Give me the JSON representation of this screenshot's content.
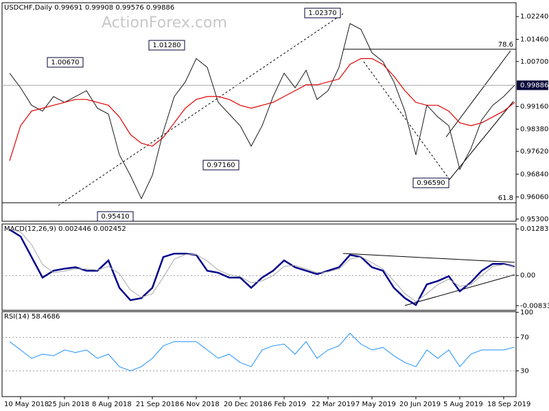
{
  "chart_data": [
    {
      "type": "line",
      "title": "USDCHF,Daily  0.99691 0.99908 0.99576 0.99886",
      "watermark": "ActionForex.com",
      "categories": [
        null,
        "10 May 2018",
        null,
        null,
        null,
        "25 Jun 2018",
        null,
        null,
        null,
        "8 Aug 2018",
        null,
        null,
        null,
        "21 Sep 2018",
        null,
        null,
        null,
        "6 Nov 2018",
        null,
        null,
        null,
        "20 Dec 2018",
        null,
        null,
        null,
        "6 Feb 2019",
        null,
        null,
        null,
        "22 Mar 2019",
        null,
        null,
        null,
        "7 May 2019",
        null,
        null,
        null,
        "20 Jun 2019",
        null,
        null,
        null,
        "5 Aug 2019",
        null,
        null,
        null,
        "18 Sep 2019",
        null
      ],
      "series": [
        {
          "color": "#1a1a1a",
          "values": [
            1.003,
            0.998,
            0.992,
            0.99,
            0.995,
            0.993,
            0.995,
            0.997,
            0.991,
            0.989,
            0.975,
            0.968,
            0.96,
            0.968,
            0.983,
            0.995,
            1.0,
            1.008,
            1.005,
            0.993,
            0.989,
            0.985,
            0.978,
            0.985,
            0.995,
            1.003,
            0.998,
            1.004,
            0.994,
            0.997,
            1.005,
            1.02,
            1.018,
            1.01,
            1.007,
            1.0,
            0.99,
            0.975,
            0.992,
            0.988,
            0.985,
            0.97,
            0.977,
            0.987,
            0.992,
            0.995,
            0.9989
          ]
        },
        {
          "color": "#e00000",
          "values": [
            0.973,
            0.985,
            0.99,
            0.991,
            0.992,
            0.993,
            0.994,
            0.994,
            0.993,
            0.992,
            0.988,
            0.982,
            0.979,
            0.978,
            0.981,
            0.986,
            0.991,
            0.994,
            0.995,
            0.995,
            0.994,
            0.992,
            0.991,
            0.992,
            0.993,
            0.995,
            0.997,
            0.999,
            0.999,
            1.0,
            1.001,
            1.006,
            1.008,
            1.008,
            1.006,
            1.002,
            0.997,
            0.993,
            0.992,
            0.992,
            0.99,
            0.986,
            0.985,
            0.986,
            0.988,
            0.99,
            0.993
          ]
        }
      ],
      "ylim": [
        0.9525,
        1.0269
      ],
      "yticks": [
        {
          "value": 1.0224,
          "label": "1.02240"
        },
        {
          "value": 1.0146,
          "label": "1.01460"
        },
        {
          "value": 1.007,
          "label": "1.00700"
        },
        {
          "value": 0.9916,
          "label": "0.99160"
        },
        {
          "value": 0.9838,
          "label": "0.98380"
        },
        {
          "value": 0.9762,
          "label": "0.97620"
        },
        {
          "value": 0.9684,
          "label": "0.96840"
        },
        {
          "value": 0.9606,
          "label": "0.96060"
        },
        {
          "value": 0.953,
          "label": "0.95300"
        }
      ],
      "last_price": 0.99886,
      "levels": [
        {
          "label": "78.6",
          "value": 1.0112
        },
        {
          "label": "61.8",
          "value": 0.9586
        }
      ],
      "annotations": [
        "1.00670",
        "1.01280",
        "1.02370",
        "0.97160",
        "0.95410",
        "0.96590"
      ]
    },
    {
      "type": "line",
      "title": "MACD(12,26,9) 0.002446 0.002452",
      "series": [
        {
          "color": "#00008b",
          "values": [
            0.01264,
            0.01076,
            0.00509,
            -0.00057,
            0.00132,
            0.00189,
            0.00226,
            0.00132,
            0.00132,
            0.00415,
            -0.0034,
            -0.00679,
            -0.00623,
            -0.0034,
            0.00509,
            0.00604,
            0.00604,
            0.00566,
            0.00132,
            0.00075,
            -0.00057,
            -0.00057,
            -0.0034,
            -0.00057,
            0.00132,
            0.00415,
            0.00226,
            0.00132,
            0.00038,
            0.00132,
            0.00226,
            0.00566,
            0.00509,
            0.00226,
            0.00132,
            -0.0034,
            -0.00623,
            -0.00811,
            -0.00245,
            -0.00151,
            -0.00019,
            -0.00434,
            -0.00189,
            0.00132,
            0.00321,
            0.00321,
            0.002446
          ]
        },
        {
          "color": "#a8a8a8",
          "values": [
            0.0128,
            0.012,
            0.0085,
            0.003,
            0.0008,
            0.0012,
            0.0018,
            0.0018,
            0.0015,
            0.0025,
            0.0005,
            -0.004,
            -0.006,
            -0.005,
            -0.0005,
            0.0045,
            0.0058,
            0.0058,
            0.004,
            0.0015,
            0.0002,
            -0.0003,
            -0.002,
            -0.0015,
            0,
            0.0025,
            0.0028,
            0.0018,
            0.0008,
            0.001,
            0.0018,
            0.0045,
            0.0052,
            0.0035,
            0.0018,
            -0.0015,
            -0.005,
            -0.0072,
            -0.005,
            -0.0025,
            -0.001,
            -0.003,
            -0.0025,
            0,
            0.0025,
            0.003,
            0.002452
          ]
        }
      ],
      "ylim": [
        -0.0094,
        0.014
      ],
      "yticks": [
        0.012831,
        {
          "value": 0,
          "label": "0.00"
        },
        -0.00833
      ]
    },
    {
      "type": "line",
      "title": "RSI(14) 58.4686",
      "series": [
        {
          "color": "#1e90ff",
          "values": [
            65,
            55,
            45,
            50,
            48,
            55,
            52,
            55,
            45,
            50,
            35,
            30,
            35,
            45,
            60,
            65,
            65,
            65,
            55,
            45,
            50,
            40,
            35,
            55,
            60,
            62,
            50,
            65,
            45,
            55,
            60,
            75,
            62,
            55,
            58,
            48,
            40,
            35,
            55,
            45,
            55,
            35,
            50,
            55,
            55,
            55,
            58.4686
          ]
        }
      ],
      "ylim": [
        0,
        100
      ],
      "yticks": [
        100,
        70,
        30
      ]
    }
  ]
}
